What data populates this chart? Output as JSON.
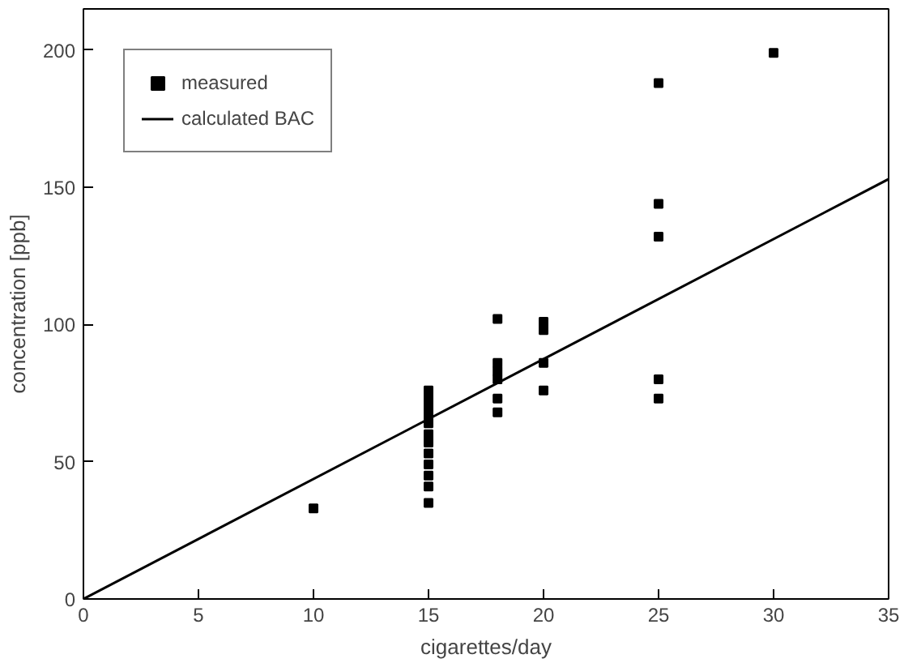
{
  "chart_data": {
    "type": "scatter",
    "xlabel": "cigarettes/day",
    "ylabel": "concentration [ppb]",
    "xlim": [
      0,
      35
    ],
    "ylim": [
      0,
      215
    ],
    "xticks": [
      0,
      5,
      10,
      15,
      20,
      25,
      30,
      35
    ],
    "yticks": [
      0,
      50,
      100,
      150,
      200
    ],
    "grid": false,
    "legend": "top left",
    "series": [
      {
        "name": "measured",
        "color": "#000000",
        "marker": "square",
        "x": [
          10,
          15,
          15,
          15,
          15,
          15,
          15,
          15,
          15,
          15,
          15,
          15,
          15,
          18,
          18,
          18,
          18,
          18,
          18,
          20,
          20,
          20,
          20,
          25,
          25,
          25,
          25,
          25,
          30
        ],
        "values": [
          33,
          76,
          73,
          70,
          67,
          64,
          60,
          57,
          53,
          49,
          45,
          41,
          35,
          102,
          86,
          83,
          80,
          73,
          68,
          101,
          98,
          86,
          76,
          188,
          144,
          132,
          80,
          73,
          199
        ]
      },
      {
        "name": "calculated BAC",
        "type": "line",
        "color": "#000000",
        "line_style": "solid",
        "x": [
          0,
          35
        ],
        "values": [
          0,
          153
        ]
      }
    ]
  }
}
